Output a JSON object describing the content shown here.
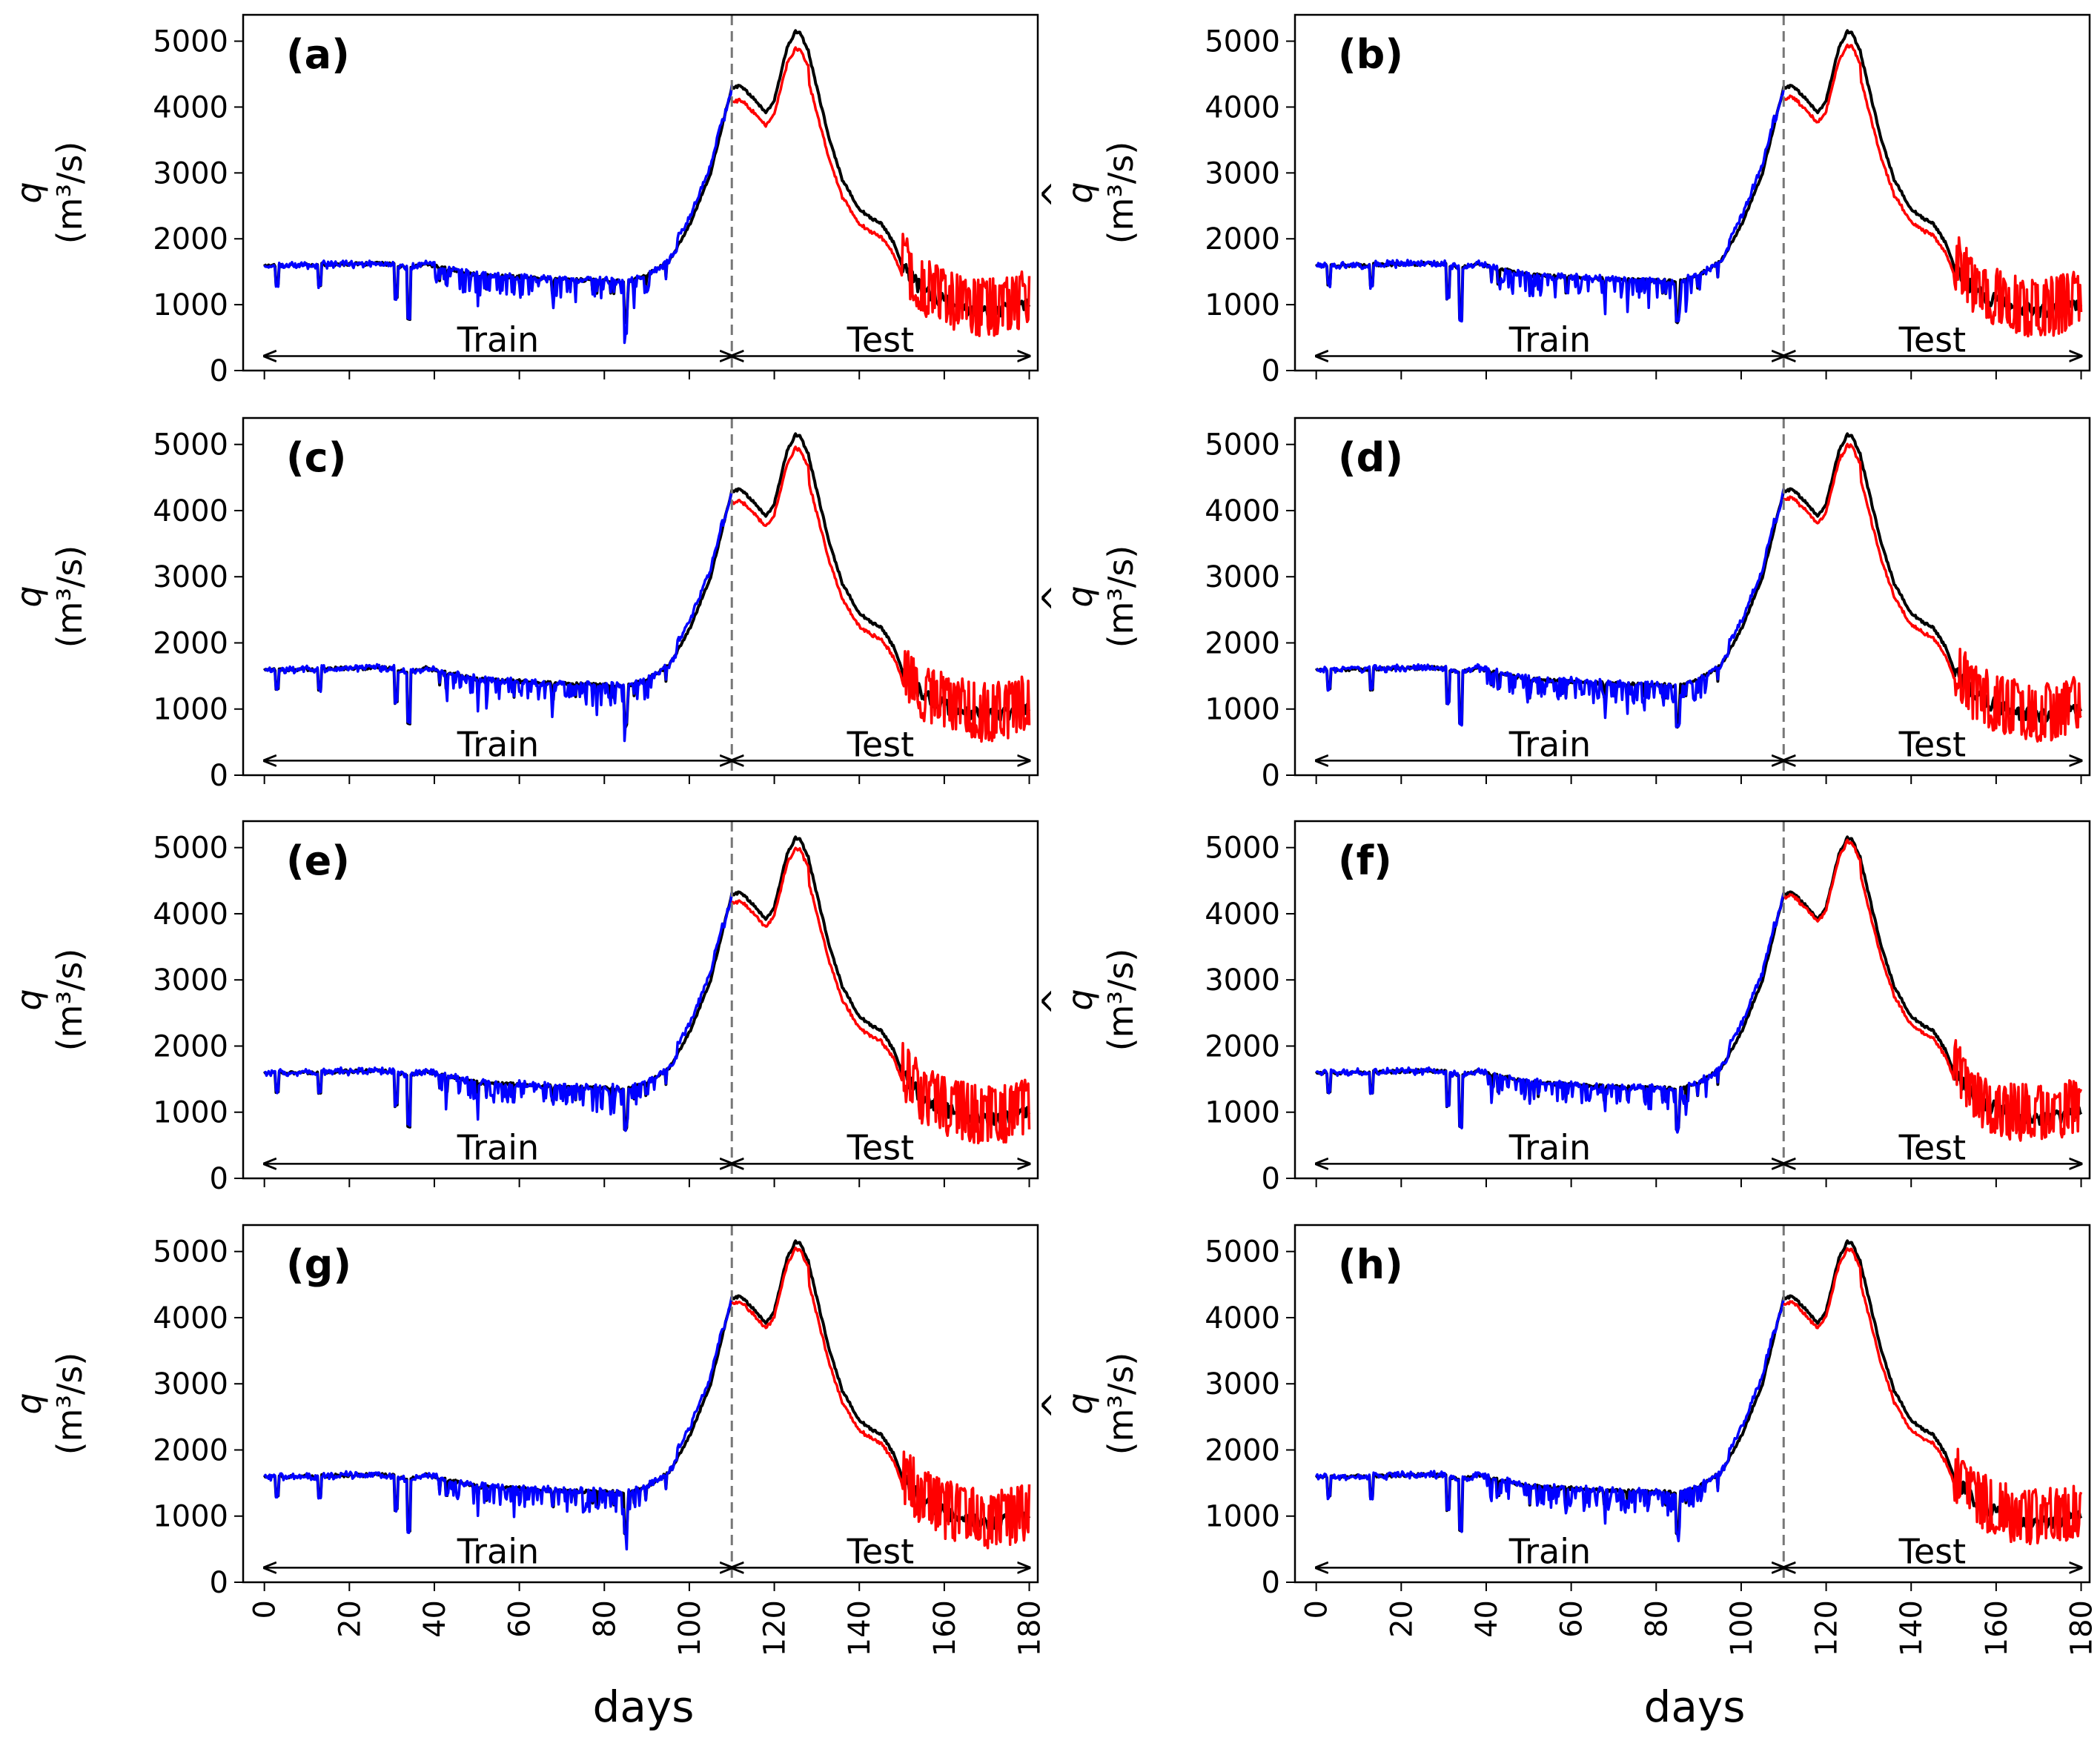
{
  "chart_data": {
    "type": "line",
    "layout": "4x2 grid of line charts",
    "shared": {
      "xlabel": "days",
      "ylabel_symbol": "q",
      "ylabel_hat": "^",
      "ylabel_units": "(m³/s)",
      "xlim": [
        -5,
        182
      ],
      "ylim": [
        0,
        5400
      ],
      "xticks": [
        0,
        20,
        40,
        60,
        80,
        100,
        120,
        140,
        160,
        180
      ],
      "yticks": [
        0,
        1000,
        2000,
        3000,
        4000,
        5000
      ],
      "split_day": 110,
      "train_label": "Train",
      "test_label": "Test",
      "train_range": [
        0,
        110
      ],
      "test_range": [
        110,
        180
      ],
      "colors": {
        "observed": "#000000",
        "train_pred": "#0000ff",
        "test_pred": "#ff0000",
        "split_line": "#777777"
      }
    },
    "observed_keypoints": {
      "x": [
        0,
        10,
        20,
        30,
        34,
        38,
        45,
        50,
        60,
        70,
        80,
        85,
        90,
        95,
        97,
        100,
        105,
        110,
        112,
        115,
        118,
        120,
        123,
        125,
        126,
        128,
        130,
        133,
        136,
        140,
        143,
        145,
        148,
        150,
        155,
        160,
        165,
        170,
        175,
        180
      ],
      "y": [
        1600,
        1600,
        1620,
        1620,
        1560,
        1620,
        1520,
        1450,
        1420,
        1380,
        1370,
        1350,
        1450,
        1650,
        1850,
        2200,
        3000,
        4300,
        4320,
        4150,
        3900,
        4100,
        4900,
        5150,
        5130,
        4850,
        4300,
        3500,
        2900,
        2450,
        2300,
        2250,
        1950,
        1600,
        1200,
        1050,
        950,
        900,
        950,
        1050
      ]
    },
    "panels": [
      {
        "label": "(a)",
        "test_scale": 0.95
      },
      {
        "label": "(b)",
        "test_scale": 0.96
      },
      {
        "label": "(c)",
        "test_scale": 0.96
      },
      {
        "label": "(d)",
        "test_scale": 0.97
      },
      {
        "label": "(e)",
        "test_scale": 0.97
      },
      {
        "label": "(f)",
        "test_scale": 0.99
      },
      {
        "label": "(g)",
        "test_scale": 0.98
      },
      {
        "label": "(h)",
        "test_scale": 0.98
      }
    ]
  }
}
